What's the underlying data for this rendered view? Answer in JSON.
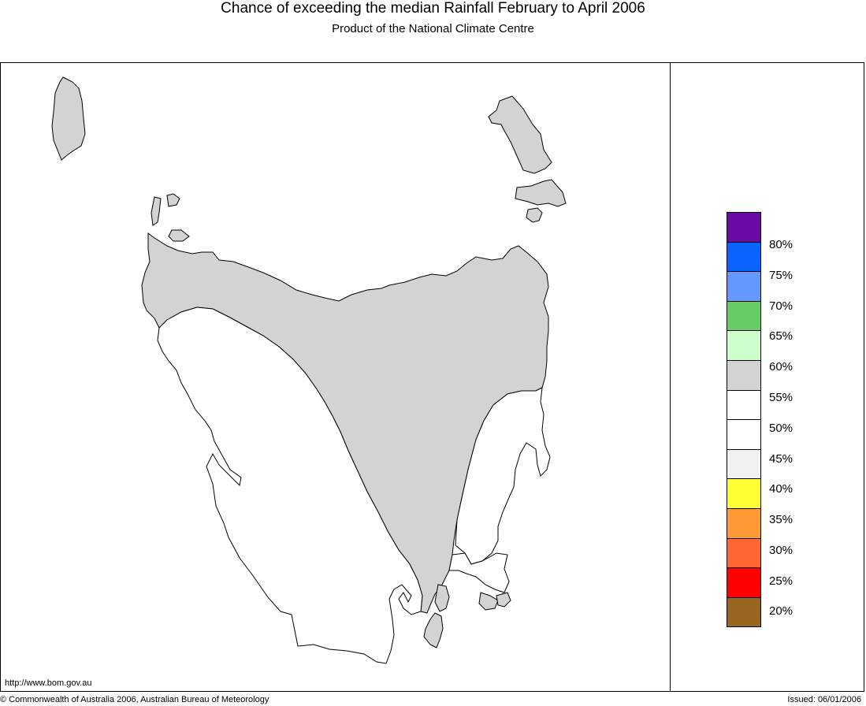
{
  "header": {
    "title": "Chance of exceeding the median Rainfall February to April 2006",
    "subtitle": "Product of the National Climate Centre"
  },
  "map": {
    "region": "Tasmania",
    "shading": [
      {
        "area": "north and east",
        "category": "55-60%",
        "color": "#d3d3d3"
      },
      {
        "area": "west and south-east",
        "category": "45-55%",
        "color": "#ffffff"
      }
    ]
  },
  "legend": {
    "swatches": [
      {
        "color": "#6a0aa2"
      },
      {
        "color": "#0a64ff"
      },
      {
        "color": "#6699ff"
      },
      {
        "color": "#66cc66"
      },
      {
        "color": "#ccffcc"
      },
      {
        "color": "#d3d3d3"
      },
      {
        "color": "#ffffff"
      },
      {
        "color": "#ffffff"
      },
      {
        "color": "#f0f0f0"
      },
      {
        "color": "#ffff33"
      },
      {
        "color": "#ff9933"
      },
      {
        "color": "#ff6633"
      },
      {
        "color": "#ff0000"
      },
      {
        "color": "#996622"
      }
    ],
    "labels": [
      "80%",
      "75%",
      "70%",
      "65%",
      "60%",
      "55%",
      "50%",
      "45%",
      "40%",
      "35%",
      "30%",
      "25%",
      "20%"
    ]
  },
  "footer": {
    "url": "http://www.bom.gov.au",
    "copyright": "© Commonwealth of Australia 2006, Australian Bureau of Meteorology",
    "issued": "Issued: 06/01/2006"
  }
}
